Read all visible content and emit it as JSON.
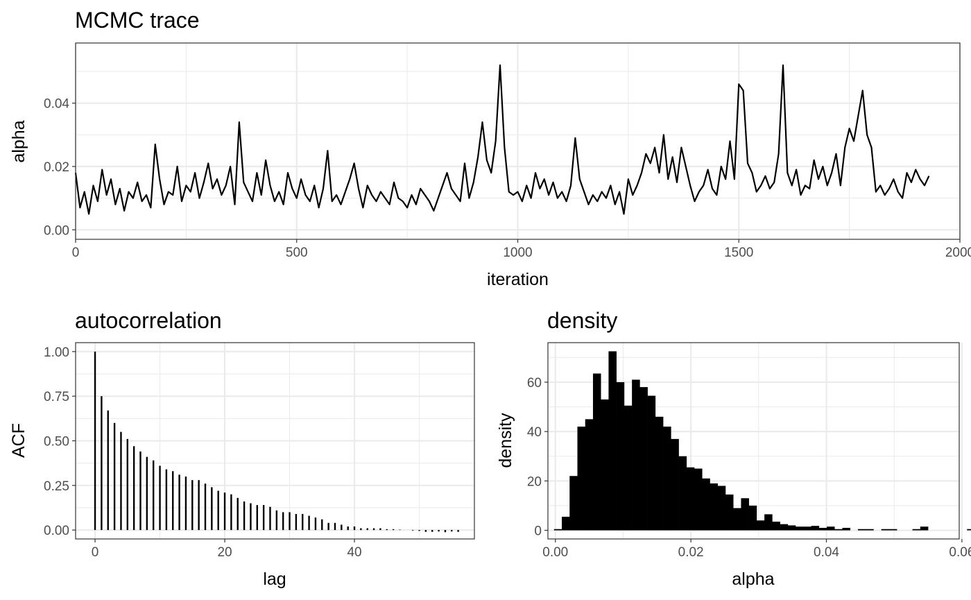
{
  "chart_data": [
    {
      "type": "line",
      "title": "MCMC trace",
      "xlabel": "iteration",
      "ylabel": "alpha",
      "xlim": [
        0,
        2000
      ],
      "ylim": [
        -0.003,
        0.059
      ],
      "xticks": [
        0,
        500,
        1000,
        1500,
        2000
      ],
      "xtick_labels": [
        "0",
        "500",
        "1000",
        "1500",
        "2000"
      ],
      "yticks": [
        0,
        0.02,
        0.04
      ],
      "ytick_labels": [
        "0.00",
        "0.02",
        "0.04"
      ],
      "series": [
        {
          "name": "alpha",
          "color": "#000000",
          "x_step": 10,
          "values": [
            0.018,
            0.007,
            0.012,
            0.005,
            0.014,
            0.009,
            0.019,
            0.011,
            0.016,
            0.008,
            0.013,
            0.006,
            0.012,
            0.01,
            0.015,
            0.009,
            0.011,
            0.007,
            0.027,
            0.016,
            0.008,
            0.012,
            0.011,
            0.02,
            0.009,
            0.014,
            0.012,
            0.018,
            0.01,
            0.015,
            0.021,
            0.013,
            0.016,
            0.011,
            0.014,
            0.02,
            0.008,
            0.034,
            0.015,
            0.012,
            0.009,
            0.018,
            0.011,
            0.022,
            0.014,
            0.009,
            0.012,
            0.008,
            0.018,
            0.013,
            0.01,
            0.016,
            0.011,
            0.009,
            0.014,
            0.007,
            0.013,
            0.025,
            0.009,
            0.011,
            0.008,
            0.012,
            0.016,
            0.021,
            0.013,
            0.007,
            0.014,
            0.011,
            0.009,
            0.012,
            0.01,
            0.008,
            0.015,
            0.01,
            0.009,
            0.007,
            0.011,
            0.008,
            0.013,
            0.011,
            0.009,
            0.006,
            0.01,
            0.014,
            0.018,
            0.013,
            0.011,
            0.009,
            0.021,
            0.01,
            0.015,
            0.023,
            0.034,
            0.022,
            0.018,
            0.028,
            0.052,
            0.026,
            0.012,
            0.011,
            0.012,
            0.009,
            0.014,
            0.01,
            0.018,
            0.013,
            0.016,
            0.011,
            0.015,
            0.01,
            0.012,
            0.009,
            0.014,
            0.029,
            0.016,
            0.012,
            0.008,
            0.011,
            0.009,
            0.012,
            0.01,
            0.014,
            0.008,
            0.012,
            0.005,
            0.016,
            0.011,
            0.014,
            0.018,
            0.024,
            0.021,
            0.026,
            0.018,
            0.03,
            0.016,
            0.023,
            0.015,
            0.026,
            0.02,
            0.014,
            0.009,
            0.012,
            0.014,
            0.019,
            0.013,
            0.011,
            0.02,
            0.016,
            0.028,
            0.016,
            0.046,
            0.044,
            0.021,
            0.018,
            0.012,
            0.014,
            0.017,
            0.013,
            0.015,
            0.024,
            0.052,
            0.018,
            0.014,
            0.019,
            0.011,
            0.014,
            0.013,
            0.022,
            0.016,
            0.02,
            0.014,
            0.018,
            0.024,
            0.014,
            0.026,
            0.032,
            0.028,
            0.036,
            0.044,
            0.03,
            0.026,
            0.012,
            0.014,
            0.011,
            0.013,
            0.016,
            0.012,
            0.01,
            0.018,
            0.015,
            0.019,
            0.016,
            0.014,
            0.017
          ]
        }
      ]
    },
    {
      "type": "bar",
      "title": "autocorrelation",
      "xlabel": "lag",
      "ylabel": "ACF",
      "xlim": [
        -3,
        58.5
      ],
      "ylim": [
        -0.05,
        1.05
      ],
      "xticks": [
        0,
        20,
        40
      ],
      "xtick_labels": [
        "0",
        "20",
        "40"
      ],
      "yticks": [
        0,
        0.25,
        0.5,
        0.75,
        1
      ],
      "ytick_labels": [
        "0.00",
        "0.25",
        "0.50",
        "0.75",
        "1.00"
      ],
      "x": [
        0,
        1,
        2,
        3,
        4,
        5,
        6,
        7,
        8,
        9,
        10,
        11,
        12,
        13,
        14,
        15,
        16,
        17,
        18,
        19,
        20,
        21,
        22,
        23,
        24,
        25,
        26,
        27,
        28,
        29,
        30,
        31,
        32,
        33,
        34,
        35,
        36,
        37,
        38,
        39,
        40,
        41,
        42,
        43,
        44,
        45,
        46,
        47,
        48,
        49,
        50,
        51,
        52,
        53,
        54,
        55,
        56
      ],
      "values": [
        1.0,
        0.75,
        0.67,
        0.6,
        0.55,
        0.51,
        0.47,
        0.44,
        0.41,
        0.39,
        0.36,
        0.34,
        0.33,
        0.31,
        0.3,
        0.28,
        0.28,
        0.26,
        0.24,
        0.22,
        0.21,
        0.2,
        0.18,
        0.16,
        0.15,
        0.14,
        0.14,
        0.13,
        0.11,
        0.1,
        0.1,
        0.09,
        0.09,
        0.08,
        0.07,
        0.06,
        0.04,
        0.04,
        0.03,
        0.02,
        0.02,
        0.01,
        0.01,
        0.01,
        0.01,
        0.005,
        0.005,
        0.002,
        0.0,
        -0.003,
        -0.005,
        -0.01,
        -0.01,
        -0.008,
        -0.012,
        -0.008,
        -0.01
      ]
    },
    {
      "type": "bar",
      "title": "density",
      "xlabel": "alpha",
      "ylabel": "density",
      "xlim": [
        -0.0011,
        0.0596
      ],
      "ylim": [
        -3.5,
        76
      ],
      "xticks": [
        0,
        0.02,
        0.04,
        0.06
      ],
      "xtick_labels": [
        "0.00",
        "0.02",
        "0.04",
        "0.06"
      ],
      "yticks": [
        0,
        20,
        40,
        60
      ],
      "ytick_labels": [
        "0",
        "20",
        "40",
        "60"
      ],
      "bin_width": 0.00115,
      "bin_start": -0.0002,
      "values": [
        0.5,
        5.5,
        22,
        42,
        45,
        63.5,
        53,
        72.5,
        60,
        50.5,
        61,
        58,
        54.5,
        46,
        42,
        37,
        30,
        25.5,
        25,
        21,
        19,
        18,
        14.5,
        9,
        13,
        10,
        4,
        6.5,
        3.5,
        2.5,
        2,
        1.5,
        1.5,
        1.8,
        1,
        1.5,
        0.5,
        1,
        0,
        0.5,
        0.5,
        0,
        0.5,
        0.5,
        0,
        0,
        0.5,
        1.5,
        0,
        0,
        0,
        0,
        0,
        0.5
      ]
    }
  ]
}
